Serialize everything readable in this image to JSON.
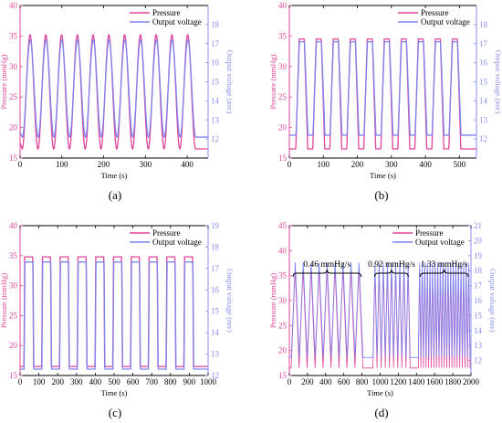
{
  "colors": {
    "pressure": "#e0449a",
    "pressure_axis": "#e0449a",
    "voltage": "#7f84ee",
    "voltage_axis": "#8a8fee",
    "frame": "#000000"
  },
  "chart_data": [
    {
      "panel": "(a)",
      "type": "line",
      "xlabel": "Time (s)",
      "ylabel_left": "Pressure (mmHg)",
      "ylabel_right": "Output voltage (mv)",
      "xlim": [
        0,
        450
      ],
      "xticks": [
        0,
        100,
        200,
        300,
        400
      ],
      "ylim_left": [
        15,
        40
      ],
      "yticks_left": [
        15,
        20,
        25,
        30,
        35,
        40
      ],
      "ylim_right": [
        11,
        19
      ],
      "yticks_right": [
        12,
        13,
        14,
        15,
        16,
        17,
        18
      ],
      "legend": [
        "Pressure",
        "Output voltage"
      ],
      "grid": false,
      "waveform": "sine",
      "cycles": 11,
      "t_start": 5,
      "t_end": 420,
      "pressure_range": [
        16.5,
        35.2
      ],
      "voltage_range": [
        12.1,
        17.2
      ]
    },
    {
      "panel": "(b)",
      "type": "line",
      "xlabel": "Time (s)",
      "ylabel_left": "Pressure (mmHg)",
      "ylabel_right": "Output voltage (mv)",
      "xlim": [
        0,
        550
      ],
      "xticks": [
        0,
        100,
        200,
        300,
        400,
        500
      ],
      "ylim_left": [
        15,
        40
      ],
      "yticks_left": [
        15,
        20,
        25,
        30,
        35,
        40
      ],
      "ylim_right": [
        11,
        19
      ],
      "yticks_right": [
        12,
        13,
        14,
        15,
        16,
        17,
        18
      ],
      "legend": [
        "Pressure",
        "Output voltage"
      ],
      "grid": false,
      "waveform": "trapezoid",
      "cycles": 10,
      "t_start": 15,
      "t_end": 515,
      "pressure_range": [
        16.5,
        34.5
      ],
      "voltage_range": [
        12.2,
        17.1
      ]
    },
    {
      "panel": "(c)",
      "type": "line",
      "xlabel": "Time (s)",
      "ylabel_left": "Pressure (mmHg)",
      "ylabel_right": "Output voltage (mv)",
      "xlim": [
        0,
        1000
      ],
      "xticks": [
        0,
        100,
        200,
        300,
        400,
        500,
        600,
        700,
        800,
        900,
        1000
      ],
      "ylim_left": [
        15,
        40
      ],
      "yticks_left": [
        15,
        20,
        25,
        30,
        35,
        40
      ],
      "ylim_right": [
        12,
        19
      ],
      "yticks_right": [
        12,
        13,
        14,
        15,
        16,
        17,
        18,
        19
      ],
      "legend": [
        "Pressure",
        "Output voltage"
      ],
      "grid": false,
      "waveform": "square",
      "cycles": 10,
      "t_start": 15,
      "t_end": 960,
      "pressure_range": [
        16.5,
        34.8
      ],
      "voltage_range": [
        12.3,
        17.3
      ]
    },
    {
      "panel": "(d)",
      "type": "line",
      "xlabel": "Time (s)",
      "ylabel_left": "Pressure (mmHg)",
      "ylabel_right": "Output voltage (mv)",
      "xlim": [
        0,
        2000
      ],
      "xticks": [
        0,
        200,
        400,
        600,
        800,
        1000,
        1200,
        1400,
        1600,
        1800,
        2000
      ],
      "ylim_left": [
        15,
        45
      ],
      "yticks_left": [
        15,
        20,
        25,
        30,
        35,
        40,
        45
      ],
      "ylim_right": [
        11,
        21
      ],
      "yticks_right": [
        12,
        13,
        14,
        15,
        16,
        17,
        18,
        19,
        20,
        21
      ],
      "legend": [
        "Pressure",
        "Output voltage"
      ],
      "grid": false,
      "waveform": "triangle-segments",
      "pressure_range": [
        16.5,
        36.5
      ],
      "voltage_range": [
        12.2,
        18.6
      ],
      "segments": [
        {
          "label": "0.46 mmHg/s",
          "t_start": 20,
          "t_end": 810,
          "cycles": 9
        },
        {
          "label": "0.92 mmHg/s",
          "t_start": 920,
          "t_end": 1330,
          "cycles": 9
        },
        {
          "label": "1.33 mmHg/s",
          "t_start": 1420,
          "t_end": 1990,
          "cycles": 20
        }
      ]
    }
  ]
}
